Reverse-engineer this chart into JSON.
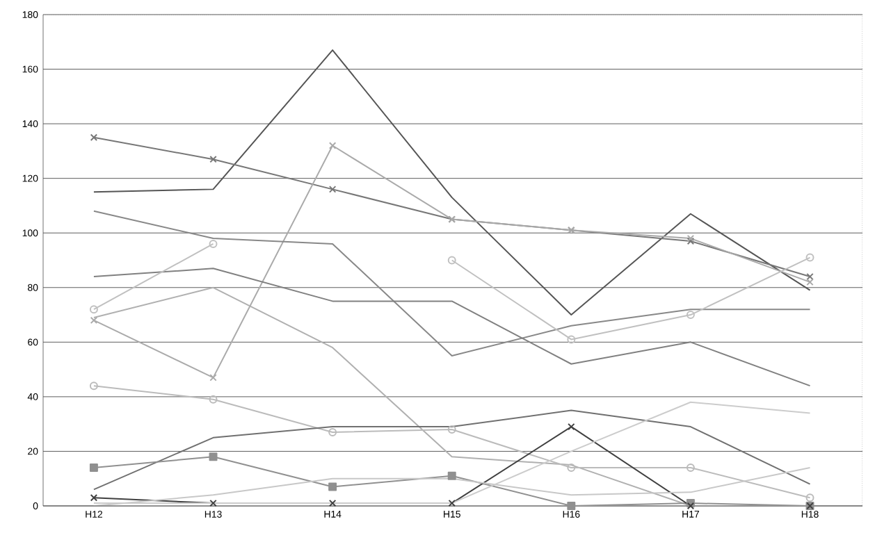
{
  "chart_data": {
    "type": "line",
    "categories": [
      "H12",
      "H13",
      "H14",
      "H15",
      "H16",
      "H17",
      "H18"
    ],
    "ylim": [
      0,
      180
    ],
    "yticks": [
      0,
      20,
      40,
      60,
      80,
      100,
      120,
      140,
      160,
      180
    ],
    "grid": "y",
    "series": [
      {
        "color": "#555555",
        "marker": "none",
        "values": [
          115,
          116,
          167,
          113,
          70,
          107,
          79
        ]
      },
      {
        "color": "#777777",
        "marker": "cross",
        "values": [
          135,
          127,
          116,
          105,
          101,
          97,
          84
        ]
      },
      {
        "color": "#aaaaaa",
        "marker": "cross",
        "values": [
          68,
          47,
          132,
          105,
          101,
          98,
          82
        ]
      },
      {
        "color": "#888888",
        "marker": "none",
        "values": [
          108,
          98,
          96,
          55,
          66,
          72,
          72
        ]
      },
      {
        "color": "#808080",
        "marker": "none",
        "values": [
          84,
          87,
          75,
          75,
          52,
          60,
          44
        ]
      },
      {
        "color": "#c0c0c0",
        "marker": "circle",
        "values": [
          72,
          96,
          null,
          90,
          61,
          70,
          91
        ]
      },
      {
        "color": "#b0b0b0",
        "marker": "none",
        "values": [
          69,
          80,
          58,
          18,
          15,
          0,
          0
        ]
      },
      {
        "color": "#bbbbbb",
        "marker": "circle",
        "values": [
          44,
          39,
          27,
          28,
          14,
          14,
          3
        ]
      },
      {
        "color": "#707070",
        "marker": "none",
        "values": [
          6,
          25,
          29,
          29,
          35,
          29,
          8
        ]
      },
      {
        "color": "#909090",
        "marker": "square",
        "values": [
          14,
          18,
          7,
          11,
          0,
          1,
          0
        ]
      },
      {
        "color": "#404040",
        "marker": "cross",
        "values": [
          3,
          1,
          1,
          1,
          29,
          0,
          0
        ]
      },
      {
        "color": "#c8c8c8",
        "marker": "none",
        "values": [
          0,
          4,
          10,
          10,
          4,
          5,
          14
        ]
      },
      {
        "color": "#cccccc",
        "marker": "none",
        "values": [
          1,
          1,
          1,
          1,
          20,
          38,
          34
        ]
      },
      {
        "color": "#999999",
        "marker": "none",
        "values": [
          0,
          0,
          0,
          0,
          0,
          0,
          0
        ]
      }
    ]
  }
}
